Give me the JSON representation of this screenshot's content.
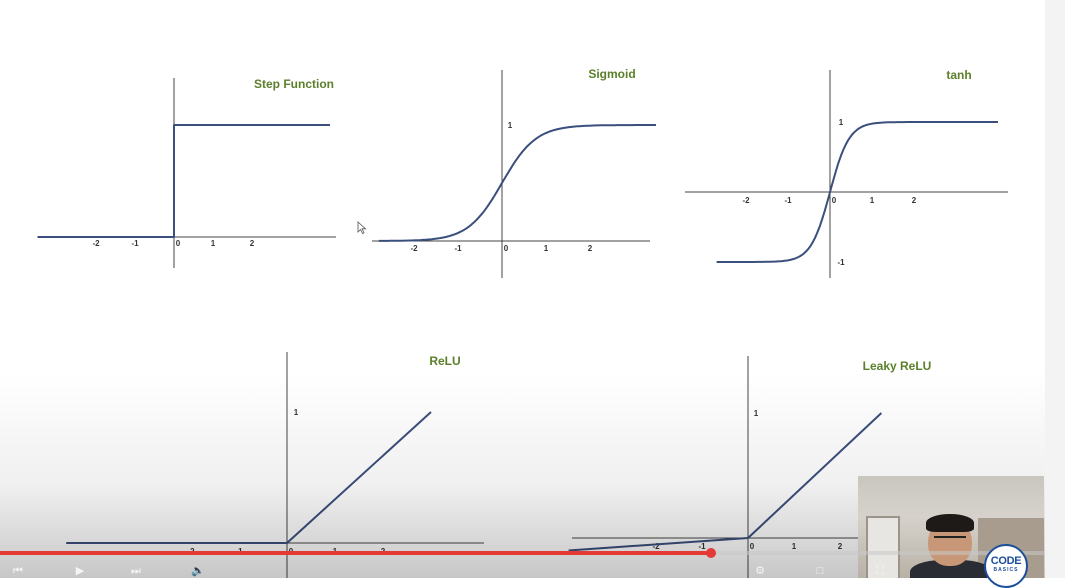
{
  "charts": [
    {
      "id": "step",
      "title": "Step Function",
      "x_ticks": [
        "-2",
        "-1",
        "0",
        "1",
        "2"
      ],
      "y_ticks": []
    },
    {
      "id": "sigmoid",
      "title": "Sigmoid",
      "x_ticks": [
        "-2",
        "-1",
        "0",
        "1",
        "2"
      ],
      "y_ticks": [
        "1"
      ]
    },
    {
      "id": "tanh",
      "title": "tanh",
      "x_ticks": [
        "-2",
        "-1",
        "0",
        "1",
        "2"
      ],
      "y_ticks": [
        "1",
        "-1"
      ]
    },
    {
      "id": "relu",
      "title": "ReLU",
      "x_ticks": [
        "-2",
        "-1",
        "0",
        "1",
        "2"
      ],
      "y_ticks": [
        "1"
      ]
    },
    {
      "id": "leaky",
      "title": "Leaky ReLU",
      "x_ticks": [
        "-2",
        "-1",
        "0",
        "1",
        "2"
      ],
      "y_ticks": [
        "1"
      ]
    }
  ],
  "chart_data": [
    {
      "type": "line",
      "title": "Step Function",
      "x_ticks": [
        -2,
        -1,
        0,
        1,
        2
      ],
      "series": [
        {
          "x": [
            -3.5,
            0,
            0,
            4
          ],
          "y": [
            0,
            0,
            1,
            1
          ]
        }
      ]
    },
    {
      "type": "line",
      "title": "Sigmoid",
      "x_ticks": [
        -2,
        -1,
        0,
        1,
        2
      ],
      "y_ticks": [
        1
      ],
      "series": [
        {
          "function": "sigmoid",
          "x_range": [
            -2.8,
            3.5
          ]
        }
      ]
    },
    {
      "type": "line",
      "title": "tanh",
      "x_ticks": [
        -2,
        -1,
        0,
        1,
        2
      ],
      "y_ticks": [
        1,
        -1
      ],
      "series": [
        {
          "function": "tanh",
          "x_range": [
            -2.7,
            4.0
          ]
        }
      ]
    },
    {
      "type": "line",
      "title": "ReLU",
      "x_ticks": [
        -2,
        -1,
        0,
        1,
        2
      ],
      "y_ticks": [
        1
      ],
      "series": [
        {
          "x": [
            -4.6,
            0,
            3.0
          ],
          "y": [
            0,
            0,
            1.0
          ]
        }
      ]
    },
    {
      "type": "line",
      "title": "Leaky ReLU",
      "x_ticks": [
        -2,
        -1,
        0,
        1,
        2
      ],
      "y_ticks": [
        1
      ],
      "series": [
        {
          "x": [
            -3.9,
            0,
            2.9
          ],
          "y": [
            -0.1,
            0,
            1.0
          ]
        }
      ]
    }
  ],
  "colors": {
    "curve": "#3b4f7d",
    "axis": "#444444",
    "title": "#5b7f2a",
    "progress": "#e53935"
  },
  "player": {
    "progress_percent": 68,
    "controls": [
      "previous-icon",
      "play-icon",
      "next-icon",
      "volume-icon",
      "settings-icon",
      "fullscreen-icon"
    ]
  },
  "logo": {
    "main": "CODE",
    "sub": "BASICS"
  }
}
